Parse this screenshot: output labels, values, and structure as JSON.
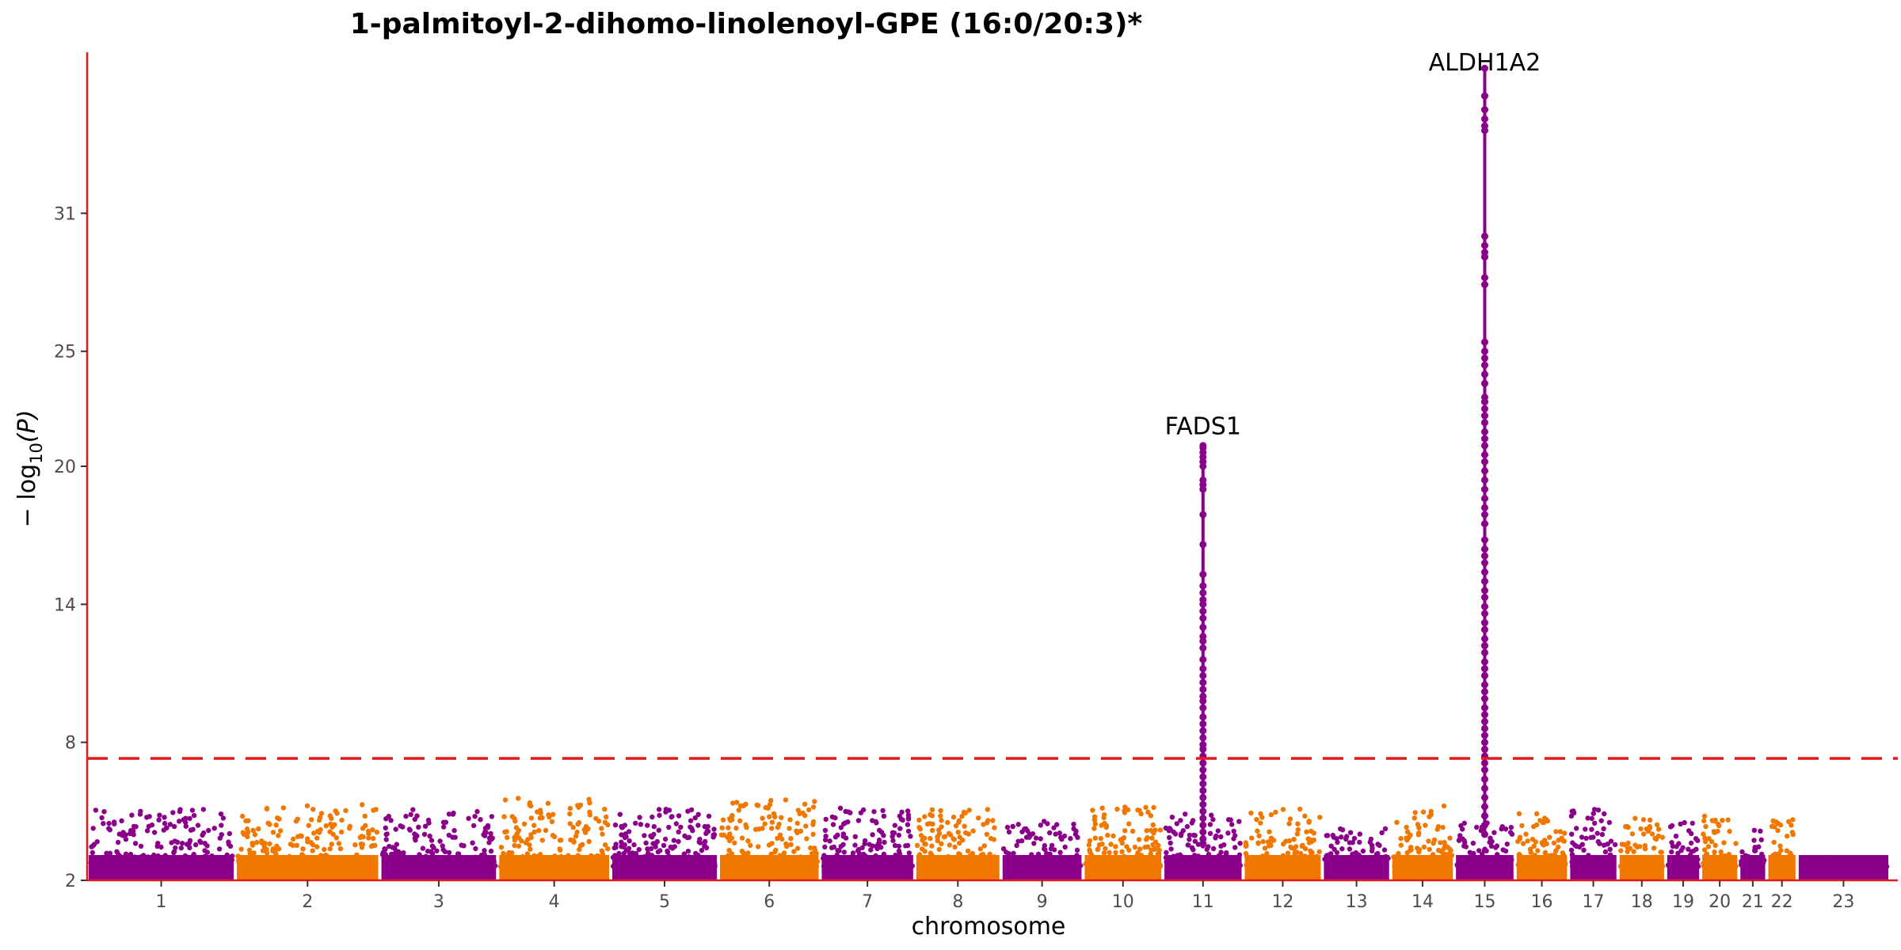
{
  "chart_data": {
    "type": "scatter",
    "title": "1-palmitoyl-2-dihomo-linolenoyl-GPE (16:0/20:3)*",
    "xlabel": "chromosome",
    "ylabel_parts": {
      "prefix": "− log",
      "sub": "10",
      "suffix": "(P)"
    },
    "ylim": [
      2,
      38
    ],
    "y_ticks": [
      2,
      8,
      14,
      20,
      25,
      31
    ],
    "significance_threshold": 7.3,
    "threshold_color": "#e41a1c",
    "axis_color": "#e41a1c",
    "colors": [
      "#8b008b",
      "#f07800"
    ],
    "grid": false,
    "chromosomes": [
      {
        "label": "1",
        "max": 5.1,
        "n": 240
      },
      {
        "label": "2",
        "max": 5.3,
        "n": 240
      },
      {
        "label": "3",
        "max": 5.1,
        "n": 210
      },
      {
        "label": "4",
        "max": 5.6,
        "n": 200
      },
      {
        "label": "5",
        "max": 5.1,
        "n": 190
      },
      {
        "label": "6",
        "max": 5.5,
        "n": 180
      },
      {
        "label": "7",
        "max": 5.2,
        "n": 170
      },
      {
        "label": "8",
        "max": 5.1,
        "n": 150
      },
      {
        "label": "9",
        "max": 4.6,
        "n": 120
      },
      {
        "label": "10",
        "max": 5.2,
        "n": 140
      },
      {
        "label": "11",
        "max": 4.9,
        "n": 140
      },
      {
        "label": "12",
        "max": 5.1,
        "n": 140
      },
      {
        "label": "13",
        "max": 4.3,
        "n": 110
      },
      {
        "label": "14",
        "max": 5.3,
        "n": 100
      },
      {
        "label": "15",
        "max": 4.5,
        "n": 90
      },
      {
        "label": "16",
        "max": 4.9,
        "n": 90
      },
      {
        "label": "17",
        "max": 5.1,
        "n": 85
      },
      {
        "label": "18",
        "max": 4.7,
        "n": 80
      },
      {
        "label": "19",
        "max": 4.6,
        "n": 60
      },
      {
        "label": "20",
        "max": 4.8,
        "n": 65
      },
      {
        "label": "21",
        "max": 4.2,
        "n": 40
      },
      {
        "label": "22",
        "max": 4.7,
        "n": 45
      },
      {
        "label": "23",
        "max": 3.0,
        "n": 90
      }
    ],
    "chromosome_widths": [
      249,
      243,
      198,
      190,
      181,
      171,
      159,
      145,
      138,
      134,
      135,
      133,
      115,
      107,
      102,
      90,
      83,
      80,
      59,
      64,
      47,
      51,
      156
    ],
    "peaks": [
      {
        "label": "FADS1",
        "chromosome": "11",
        "position": 0.5,
        "values": [
          20.9,
          20.8,
          20.6,
          20.4,
          20.2,
          20.0,
          19.4,
          19.2,
          19.0,
          17.9,
          16.6,
          15.3,
          14.8,
          14.5,
          14.2,
          14.0,
          13.7,
          13.4,
          13.0,
          12.6,
          12.4,
          12.1,
          11.6,
          11.2,
          10.9,
          10.6,
          10.3,
          10.0,
          9.8,
          9.5,
          9.1,
          8.8,
          8.5,
          8.2,
          7.9,
          7.7,
          7.4,
          7.1,
          6.8,
          6.5,
          6.2,
          5.9,
          5.6,
          5.3,
          5.0,
          4.7,
          4.4,
          4.1,
          3.8,
          3.6
        ]
      },
      {
        "label": "ALDH1A2",
        "chromosome": "15",
        "position": 0.5,
        "values": [
          37.3,
          36.1,
          35.5,
          35.1,
          34.8,
          34.6,
          30.0,
          29.6,
          29.3,
          29.1,
          28.2,
          27.9,
          25.4,
          25.0,
          24.7,
          24.4,
          24.0,
          23.6,
          23.0,
          22.8,
          22.5,
          22.2,
          21.9,
          21.5,
          21.2,
          20.9,
          20.5,
          20.2,
          19.8,
          19.4,
          19.0,
          18.6,
          18.2,
          17.9,
          17.5,
          16.8,
          16.4,
          16.1,
          15.8,
          15.4,
          15.0,
          14.6,
          14.3,
          13.9,
          13.6,
          13.2,
          12.9,
          12.5,
          12.2,
          11.9,
          11.5,
          11.2,
          10.9,
          10.5,
          10.2,
          9.9,
          9.5,
          9.2,
          8.9,
          8.6,
          8.3,
          8.0,
          7.7,
          7.4,
          7.1,
          6.8,
          6.4,
          6.0,
          5.6,
          5.2,
          4.8,
          4.4,
          4.0
        ]
      }
    ],
    "annotations": [
      {
        "text": "FADS1",
        "chromosome": "11",
        "y": 21.4
      },
      {
        "text": "ALDH1A2",
        "chromosome": "15",
        "y": 37.2
      }
    ]
  }
}
